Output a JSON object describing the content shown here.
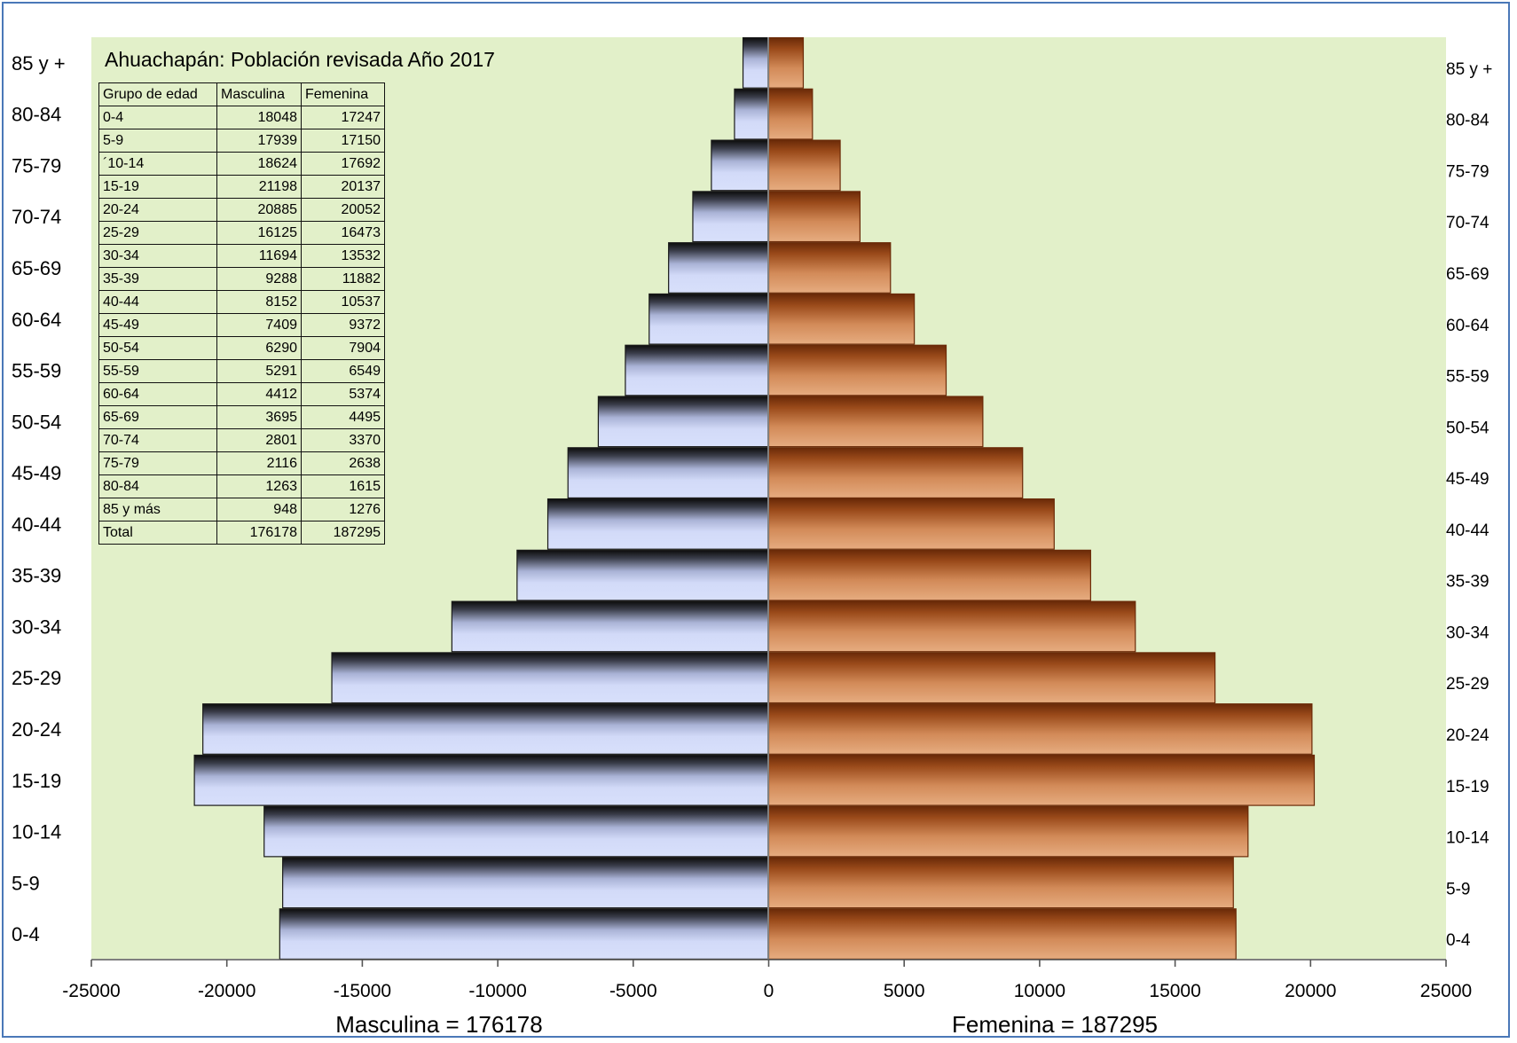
{
  "colors": {
    "plot_background": "#e2f0c9",
    "male_bar": "#d2daf8",
    "male_bar_edge": "#1a1a1a",
    "female_bar": "#e0a071",
    "female_bar_edge": "#6a2a08",
    "frame_border": "#4a78b8"
  },
  "table": {
    "headers": [
      "Grupo de edad",
      "Masculina",
      "Femenina"
    ],
    "rows": [
      [
        "0-4",
        "18048",
        "17247"
      ],
      [
        "5-9",
        "17939",
        "17150"
      ],
      [
        "´10-14",
        "18624",
        "17692"
      ],
      [
        "15-19",
        "21198",
        "20137"
      ],
      [
        "20-24",
        "20885",
        "20052"
      ],
      [
        "25-29",
        "16125",
        "16473"
      ],
      [
        "30-34",
        "11694",
        "13532"
      ],
      [
        "35-39",
        "9288",
        "11882"
      ],
      [
        "40-44",
        "8152",
        "10537"
      ],
      [
        "45-49",
        "7409",
        "9372"
      ],
      [
        "50-54",
        "6290",
        "7904"
      ],
      [
        "55-59",
        "5291",
        "6549"
      ],
      [
        "60-64",
        "4412",
        "5374"
      ],
      [
        "65-69",
        "3695",
        "4495"
      ],
      [
        "70-74",
        "2801",
        "3370"
      ],
      [
        "75-79",
        "2116",
        "2638"
      ],
      [
        "80-84",
        "1263",
        "1615"
      ],
      [
        "85 y más",
        "948",
        "1276"
      ],
      [
        "Total",
        "176178",
        "187295"
      ]
    ]
  },
  "chart_data": {
    "type": "bar",
    "orientation": "horizontal",
    "title": "Ahuachapán: Población revisada Año 2017",
    "categories": [
      "0-4",
      "5-9",
      "10-14",
      "15-19",
      "20-24",
      "25-29",
      "30-34",
      "35-39",
      "40-44",
      "45-49",
      "50-54",
      "55-59",
      "60-64",
      "65-69",
      "70-74",
      "75-79",
      "80-84",
      "85 y +"
    ],
    "series": [
      {
        "values": [
          -18048,
          -17939,
          -18624,
          -21198,
          -20885,
          -16125,
          -11694,
          -9288,
          -8152,
          -7409,
          -6290,
          -5291,
          -4412,
          -3695,
          -2801,
          -2116,
          -1263,
          -948
        ]
      },
      {
        "values": [
          17247,
          17150,
          17692,
          20137,
          20052,
          16473,
          13532,
          11882,
          10537,
          9372,
          7904,
          6549,
          5374,
          4495,
          3370,
          2638,
          1615,
          1276
        ]
      }
    ],
    "xlim": [
      -25000,
      25000
    ],
    "x_ticks": [
      -25000,
      -20000,
      -15000,
      -10000,
      -5000,
      0,
      5000,
      10000,
      15000,
      20000,
      25000
    ],
    "x_tick_labels": [
      "-25000",
      "-20000",
      "-15000",
      "-10000",
      "-5000",
      "0",
      "5000",
      "10000",
      "15000",
      "20000",
      "25000"
    ],
    "xlabel_left": "Masculina = 176178",
    "xlabel_right": "Femenina = 187295",
    "ylabel": "",
    "grid": false,
    "legend": "none"
  }
}
